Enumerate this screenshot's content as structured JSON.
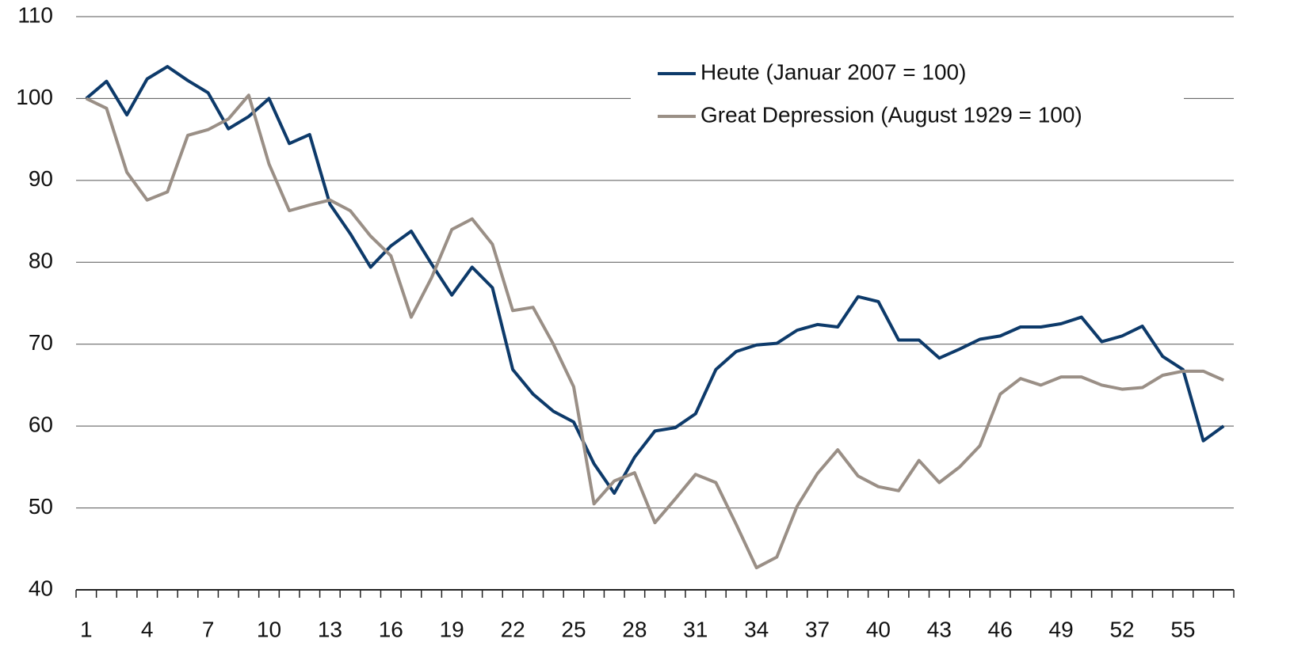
{
  "chart_data": {
    "type": "line",
    "categories": [
      1,
      null,
      null,
      4,
      null,
      null,
      7,
      null,
      null,
      10,
      null,
      null,
      13,
      null,
      null,
      16,
      null,
      null,
      19,
      null,
      null,
      22,
      null,
      null,
      25,
      null,
      null,
      28,
      null,
      null,
      31,
      null,
      null,
      34,
      null,
      null,
      37,
      null,
      null,
      40,
      null,
      null,
      43,
      null,
      null,
      46,
      null,
      null,
      49,
      null,
      null,
      52,
      null,
      null,
      55,
      null,
      null
    ],
    "series": [
      {
        "name": "Heute (Januar 2007 = 100)",
        "color": "#0d3a6a",
        "values": [
          100,
          102.1,
          98.0,
          102.4,
          103.9,
          102.2,
          100.7,
          96.3,
          97.8,
          100,
          94.5,
          95.6,
          87.1,
          83.5,
          79.4,
          82,
          83.8,
          79.8,
          76,
          79.4,
          76.9,
          66.9,
          63.9,
          61.8,
          60.5,
          55.4,
          51.8,
          56.2,
          59.4,
          59.8,
          61.5,
          66.9,
          69.1,
          69.9,
          70.1,
          71.7,
          72.4,
          72.1,
          75.8,
          75.2,
          70.5,
          70.5,
          68.3,
          69.4,
          70.6,
          71,
          72.1,
          72.1,
          72.5,
          73.3,
          70.3,
          71,
          72.2,
          68.5,
          66.9,
          58.2,
          60
        ]
      },
      {
        "name": "Great Depression (August 1929 = 100)",
        "color": "#9a8f86",
        "values": [
          100,
          98.8,
          91,
          87.6,
          88.6,
          95.5,
          96.2,
          97.5,
          100.4,
          92,
          86.3,
          87,
          87.6,
          86.3,
          83.2,
          80.8,
          73.3,
          78.1,
          84,
          85.3,
          82.2,
          74.1,
          74.5,
          70,
          64.8,
          50.5,
          53.3,
          54.3,
          48.2,
          51.1,
          54.1,
          53.1,
          48,
          42.7,
          44,
          50.2,
          54.2,
          57.1,
          53.9,
          52.6,
          52.1,
          55.8,
          53.1,
          55,
          57.6,
          63.9,
          65.8,
          65,
          66,
          66,
          65,
          64.5,
          64.7,
          66.2,
          66.7,
          66.7,
          65.6
        ]
      }
    ],
    "ylim": [
      40,
      110
    ],
    "yticks": [
      40,
      50,
      60,
      70,
      80,
      90,
      100,
      110
    ],
    "grid": true,
    "legend": "upper right"
  }
}
